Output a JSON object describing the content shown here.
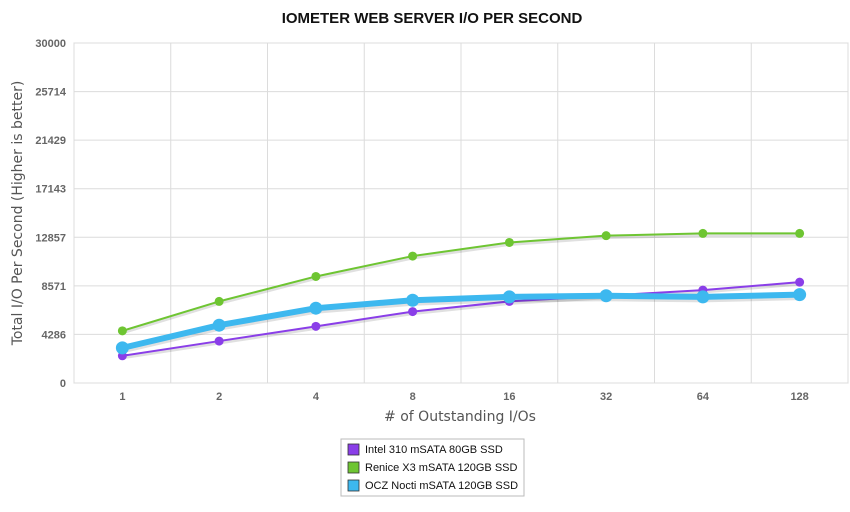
{
  "chart_data": {
    "type": "line",
    "title": "IOMETER WEB SERVER I/O PER SECOND",
    "xlabel": "# of Outstanding I/Os",
    "ylabel": "Total I/O Per Second (Higher is better)",
    "categories": [
      "1",
      "2",
      "4",
      "8",
      "16",
      "32",
      "64",
      "128"
    ],
    "y_ticks": [
      "0",
      "4286",
      "8571",
      "12857",
      "17143",
      "21429",
      "25714",
      "30000"
    ],
    "ylim": [
      0,
      30000
    ],
    "grid": true,
    "legend_position": "bottom-center",
    "series": [
      {
        "name": "Intel 310 mSATA 80GB SSD",
        "color": "#8a3ee8",
        "values": [
          2400,
          3700,
          5000,
          6300,
          7200,
          7700,
          8200,
          8900
        ]
      },
      {
        "name": "Renice X3 mSATA 120GB SSD",
        "color": "#6ec532",
        "values": [
          4600,
          7200,
          9400,
          11200,
          12400,
          13000,
          13200,
          13200
        ]
      },
      {
        "name": "OCZ Nocti mSATA 120GB SSD",
        "color": "#3db8ef",
        "values": [
          3100,
          5100,
          6600,
          7300,
          7600,
          7700,
          7600,
          7800
        ]
      }
    ]
  }
}
